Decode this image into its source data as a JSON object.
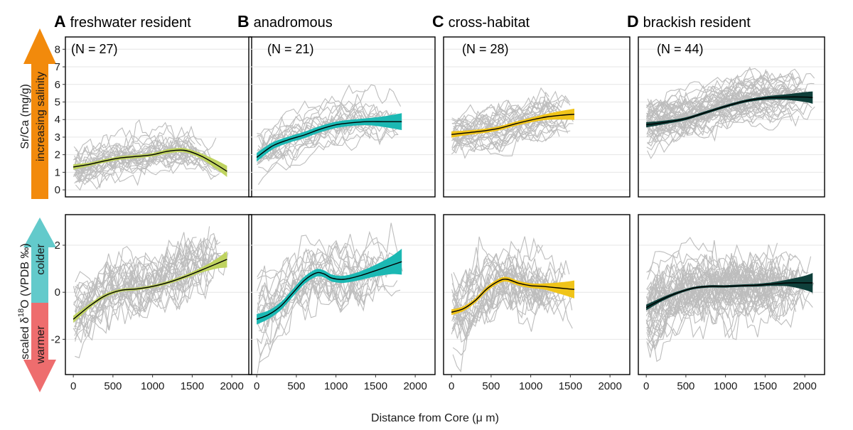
{
  "chart_data": {
    "type": "line",
    "figure_xlabel": "Distance from Core (μ m)",
    "xlim": [
      -100,
      2250
    ],
    "xticks": [
      0,
      500,
      1000,
      1500,
      2000
    ],
    "xtick_labels": [
      "0",
      "500",
      "1000",
      "1500",
      "2000"
    ],
    "rows": [
      {
        "id": "srca",
        "ylabel": "Sr/Ca (mg/g)",
        "ylim": [
          -0.4,
          8.7
        ],
        "yticks": [
          0,
          1,
          2,
          3,
          4,
          5,
          6,
          7,
          8
        ],
        "ytick_labels": [
          "0",
          "1",
          "2",
          "3",
          "4",
          "5",
          "6",
          "7",
          "8"
        ],
        "arrow": {
          "label": "increasing salinity",
          "color": "#F28A0C"
        }
      },
      {
        "id": "d18o",
        "ylabel_prefix": "scaled δ",
        "ylabel_sup": "18",
        "ylabel_suffix": "O (VPDB ‰)",
        "ylim": [
          -3.5,
          3.3
        ],
        "yticks": [
          -2,
          0,
          2
        ],
        "ytick_labels": [
          "-2",
          "0",
          "2"
        ],
        "arrow": {
          "upper_label": "colder",
          "lower_label": "warmer",
          "upper_color": "#63CACB",
          "lower_color": "#EE6D6E"
        }
      }
    ],
    "panels": [
      {
        "letter": "A",
        "title": "freshwater resident",
        "n_label": "(N = 27)",
        "n": 27,
        "color": "#BFD35F",
        "srca": {
          "x": [
            0,
            200,
            400,
            600,
            800,
            1000,
            1200,
            1400,
            1600,
            1800,
            1940
          ],
          "y": [
            1.3,
            1.45,
            1.65,
            1.82,
            1.9,
            2.0,
            2.2,
            2.25,
            1.95,
            1.45,
            1.05
          ],
          "se": [
            0.15,
            0.1,
            0.1,
            0.1,
            0.1,
            0.1,
            0.12,
            0.12,
            0.15,
            0.25,
            0.32
          ]
        },
        "d18o": {
          "x": [
            0,
            200,
            400,
            600,
            800,
            1000,
            1200,
            1400,
            1600,
            1800,
            1940
          ],
          "y": [
            -1.15,
            -0.6,
            -0.15,
            0.08,
            0.14,
            0.25,
            0.42,
            0.65,
            0.92,
            1.2,
            1.4
          ],
          "se": [
            0.15,
            0.1,
            0.08,
            0.06,
            0.06,
            0.06,
            0.07,
            0.08,
            0.1,
            0.2,
            0.35
          ]
        }
      },
      {
        "letter": "B",
        "title": "anadromous",
        "n_label": "(N = 21)",
        "n": 21,
        "color": "#1BB8B3",
        "srca": {
          "x": [
            0,
            200,
            400,
            600,
            800,
            1000,
            1200,
            1400,
            1600,
            1830
          ],
          "y": [
            1.85,
            2.5,
            2.85,
            3.12,
            3.45,
            3.7,
            3.82,
            3.88,
            3.88,
            3.88
          ],
          "se": [
            0.25,
            0.2,
            0.18,
            0.18,
            0.18,
            0.18,
            0.18,
            0.2,
            0.3,
            0.48
          ]
        },
        "d18o": {
          "x": [
            0,
            150,
            300,
            450,
            600,
            750,
            850,
            950,
            1100,
            1300,
            1500,
            1700,
            1830
          ],
          "y": [
            -1.15,
            -0.95,
            -0.6,
            -0.05,
            0.5,
            0.82,
            0.78,
            0.6,
            0.55,
            0.7,
            0.92,
            1.15,
            1.3
          ],
          "se": [
            0.22,
            0.18,
            0.17,
            0.16,
            0.16,
            0.16,
            0.15,
            0.15,
            0.15,
            0.18,
            0.25,
            0.38,
            0.55
          ]
        }
      },
      {
        "letter": "C",
        "title": "cross-habitat",
        "n_label": "(N = 28)",
        "n": 28,
        "color": "#F0C419",
        "srca": {
          "x": [
            0,
            200,
            400,
            600,
            800,
            1000,
            1200,
            1400,
            1550
          ],
          "y": [
            3.15,
            3.25,
            3.35,
            3.5,
            3.75,
            3.97,
            4.15,
            4.25,
            4.3
          ],
          "se": [
            0.18,
            0.13,
            0.12,
            0.12,
            0.12,
            0.13,
            0.17,
            0.25,
            0.32
          ]
        },
        "d18o": {
          "x": [
            0,
            150,
            300,
            450,
            600,
            700,
            850,
            1000,
            1150,
            1300,
            1450,
            1550
          ],
          "y": [
            -0.85,
            -0.7,
            -0.35,
            0.15,
            0.48,
            0.55,
            0.38,
            0.28,
            0.25,
            0.2,
            0.15,
            0.12
          ],
          "se": [
            0.12,
            0.1,
            0.1,
            0.1,
            0.1,
            0.1,
            0.1,
            0.1,
            0.12,
            0.2,
            0.3,
            0.38
          ]
        }
      },
      {
        "letter": "D",
        "title": "brackish resident",
        "n_label": "(N = 44)",
        "n": 44,
        "color": "#0E3F3A",
        "srca": {
          "x": [
            0,
            250,
            500,
            750,
            1000,
            1250,
            1500,
            1750,
            2000,
            2100
          ],
          "y": [
            3.7,
            3.85,
            4.05,
            4.4,
            4.75,
            5.05,
            5.22,
            5.28,
            5.28,
            5.25
          ],
          "se": [
            0.15,
            0.1,
            0.08,
            0.08,
            0.08,
            0.08,
            0.1,
            0.15,
            0.28,
            0.35
          ]
        },
        "d18o": {
          "x": [
            0,
            200,
            400,
            600,
            800,
            1000,
            1200,
            1400,
            1600,
            1800,
            2000,
            2100
          ],
          "y": [
            -0.65,
            -0.3,
            -0.02,
            0.18,
            0.25,
            0.25,
            0.28,
            0.3,
            0.35,
            0.4,
            0.4,
            0.4
          ],
          "se": [
            0.12,
            0.08,
            0.06,
            0.05,
            0.05,
            0.05,
            0.05,
            0.06,
            0.08,
            0.15,
            0.3,
            0.42
          ]
        }
      }
    ]
  }
}
